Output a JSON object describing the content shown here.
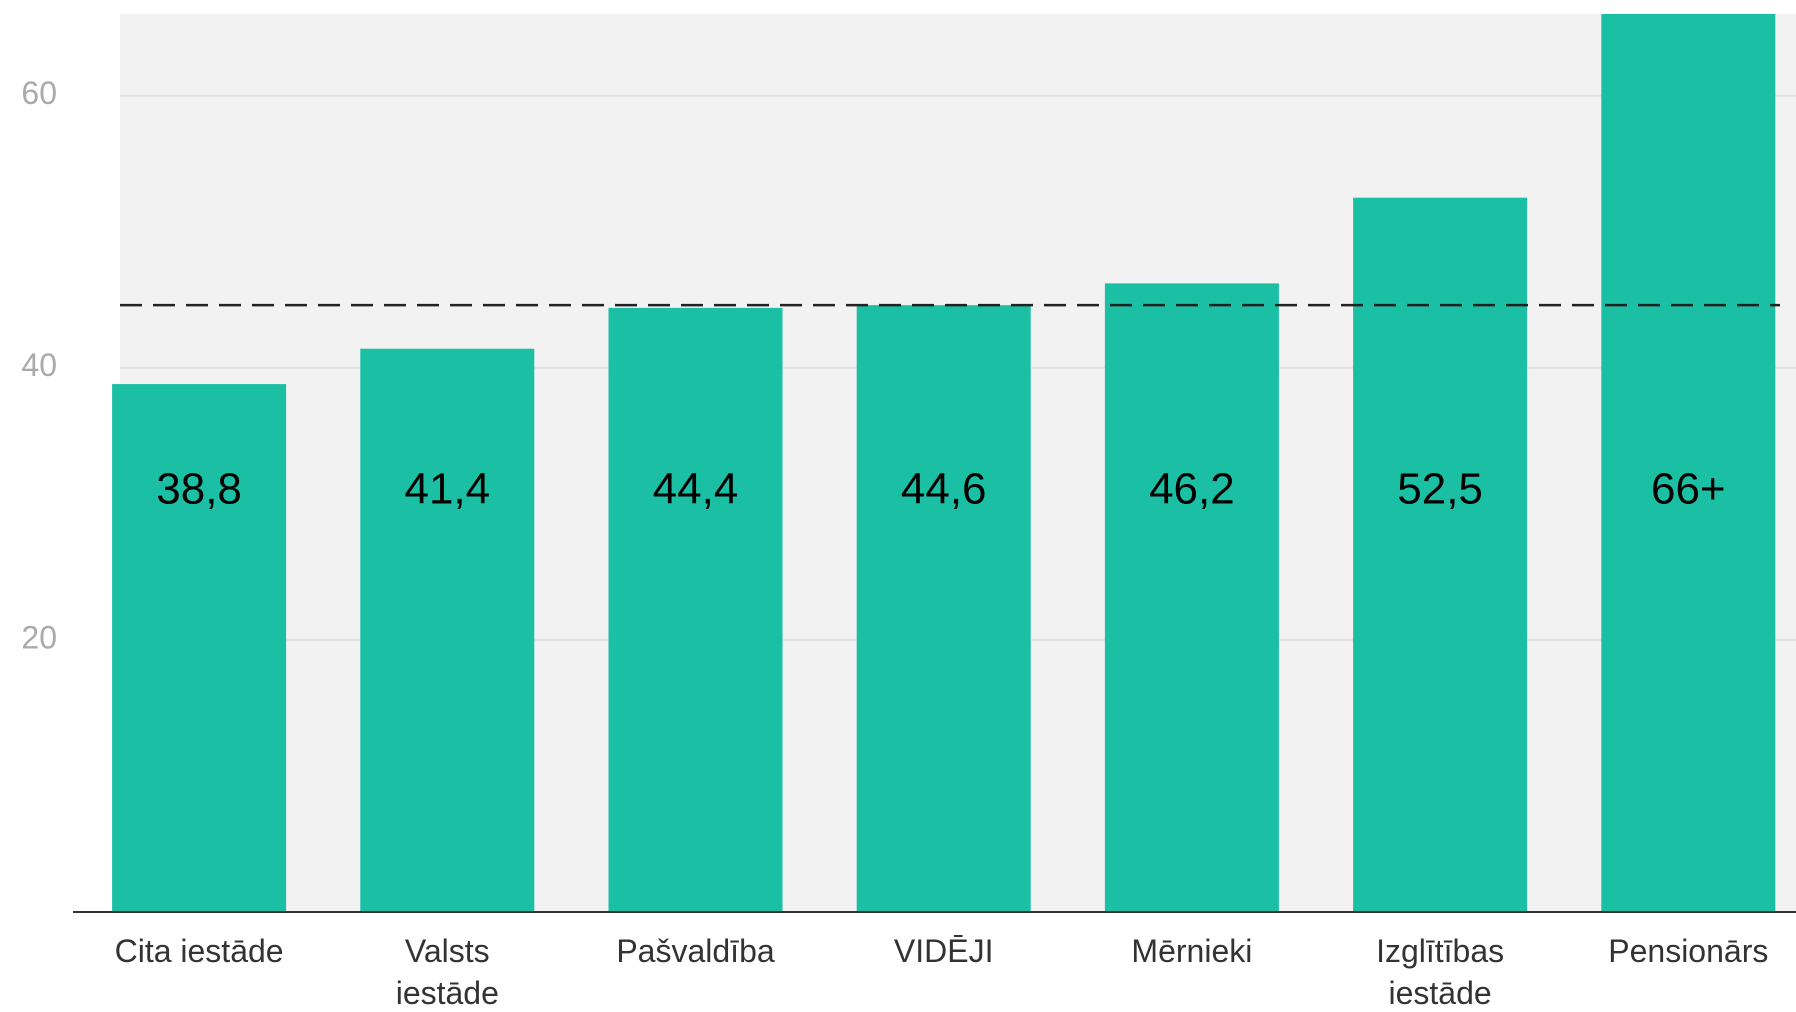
{
  "chart_data": {
    "type": "bar",
    "categories": [
      "Cita iestāde",
      "Valsts\niestāde",
      "Pašvaldība",
      "VIDĒJI",
      "Mērnieki",
      "Izglītības\niestāde",
      "Pensionārs"
    ],
    "values": [
      38.8,
      41.4,
      44.4,
      44.6,
      46.2,
      52.5,
      66
    ],
    "value_labels": [
      "38,8",
      "41,4",
      "44,4",
      "44,6",
      "46,2",
      "52,5",
      "66+"
    ],
    "color": "#1abfa4",
    "reference_line": 44.6,
    "ylim": [
      0,
      66
    ],
    "yticks": [
      20,
      40,
      60
    ],
    "grid": true
  }
}
